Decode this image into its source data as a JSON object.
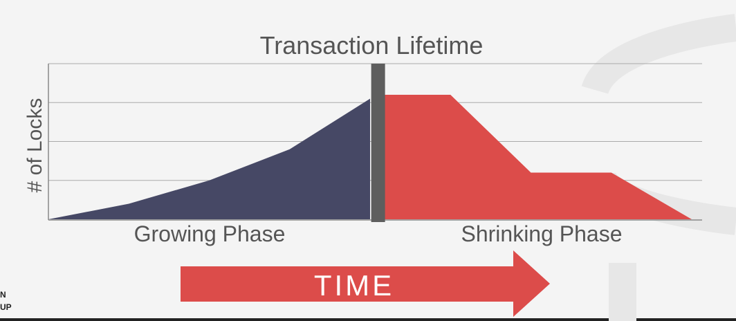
{
  "slide": {
    "background": "#f4f4f4",
    "corner_logo_lines": [
      "N",
      "UP"
    ]
  },
  "chart_data": {
    "type": "area",
    "title": "Transaction Lifetime",
    "ylabel": "# of Locks",
    "xlabel": "",
    "grid": true,
    "ylim": [
      0,
      4
    ],
    "xlim": [
      0,
      16
    ],
    "lock_point": 8.2,
    "series": [
      {
        "name": "Growing Phase",
        "color": "#464865",
        "x": [
          0,
          2,
          4,
          6,
          8
        ],
        "y": [
          0,
          0.4,
          1.0,
          1.8,
          3.1
        ]
      },
      {
        "name": "Shrinking Phase",
        "color": "#dc4c4a",
        "x": [
          8.3,
          10,
          12,
          14,
          16
        ],
        "y": [
          3.2,
          3.2,
          1.2,
          1.2,
          0
        ]
      }
    ],
    "phase_labels": [
      "Growing Phase",
      "Shrinking Phase"
    ],
    "lock_point_color": "#5e5e5e"
  },
  "time_arrow": {
    "label": "TIME",
    "color": "#dc4c4a"
  }
}
